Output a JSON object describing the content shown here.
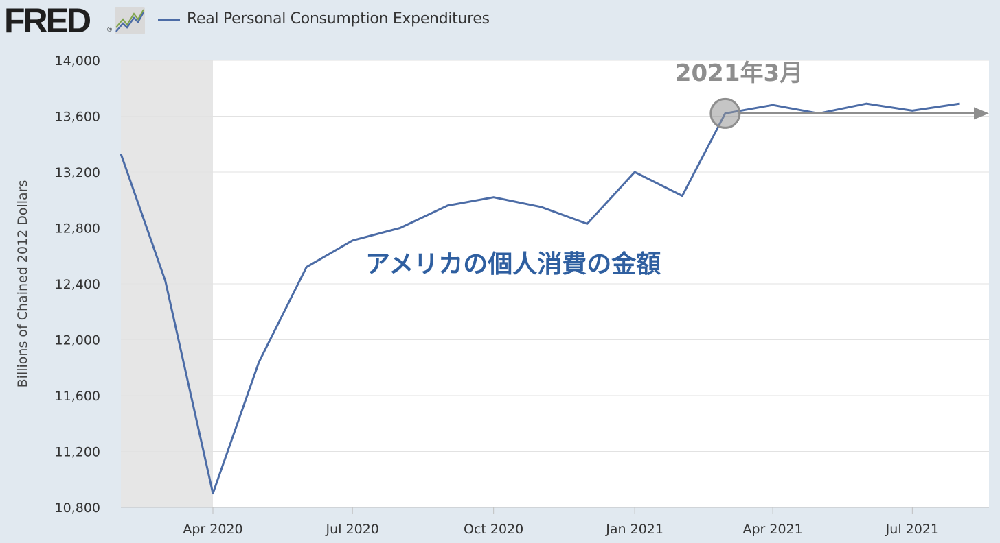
{
  "header": {
    "logo_text": "FRED",
    "logo_reg": "®",
    "legend_label": "Real Personal Consumption Expenditures"
  },
  "colors": {
    "series": "#4c6ca6",
    "recession_shade": "#e6e6e6",
    "annotation_blue": "#2f5fa0",
    "annotation_gray": "#8e8e8e"
  },
  "chart_data": {
    "type": "line",
    "title": "",
    "xlabel": "",
    "ylabel": "Billions of Chained 2012 Dollars",
    "ylim": [
      10800,
      14000
    ],
    "yticks": [
      "10,800",
      "11,200",
      "11,600",
      "12,000",
      "12,400",
      "12,800",
      "13,200",
      "13,600",
      "14,000"
    ],
    "ytick_values": [
      10800,
      11200,
      11600,
      12000,
      12400,
      12800,
      13200,
      13600,
      14000
    ],
    "x": [
      "2020-02-01",
      "2020-03-01",
      "2020-04-01",
      "2020-05-01",
      "2020-06-01",
      "2020-07-01",
      "2020-08-01",
      "2020-09-01",
      "2020-10-01",
      "2020-11-01",
      "2020-12-01",
      "2021-01-01",
      "2021-02-01",
      "2021-03-01",
      "2021-04-01",
      "2021-05-01",
      "2021-06-01",
      "2021-07-01",
      "2021-08-01"
    ],
    "xticks": [
      {
        "label": "Apr 2020",
        "date": "2020-04-01"
      },
      {
        "label": "Jul 2020",
        "date": "2020-07-01"
      },
      {
        "label": "Oct 2020",
        "date": "2020-10-01"
      },
      {
        "label": "Jan 2021",
        "date": "2021-01-01"
      },
      {
        "label": "Apr 2021",
        "date": "2021-04-01"
      },
      {
        "label": "Jul 2021",
        "date": "2021-07-01"
      }
    ],
    "series": [
      {
        "name": "Real Personal Consumption Expenditures",
        "values": [
          13330,
          12420,
          10900,
          11840,
          12520,
          12710,
          12800,
          12960,
          13020,
          12950,
          12830,
          13200,
          13030,
          13620,
          13680,
          13620,
          13690,
          13640,
          13690
        ]
      }
    ],
    "recession": {
      "start": "2020-02-01",
      "end": "2020-04-01"
    },
    "grid": true,
    "legend": "top-left",
    "annotations": {
      "main_label": "アメリカの個人消費の金額",
      "date_label": "2021年3月",
      "marker_date": "2021-03-01",
      "marker_value": 13620
    }
  }
}
